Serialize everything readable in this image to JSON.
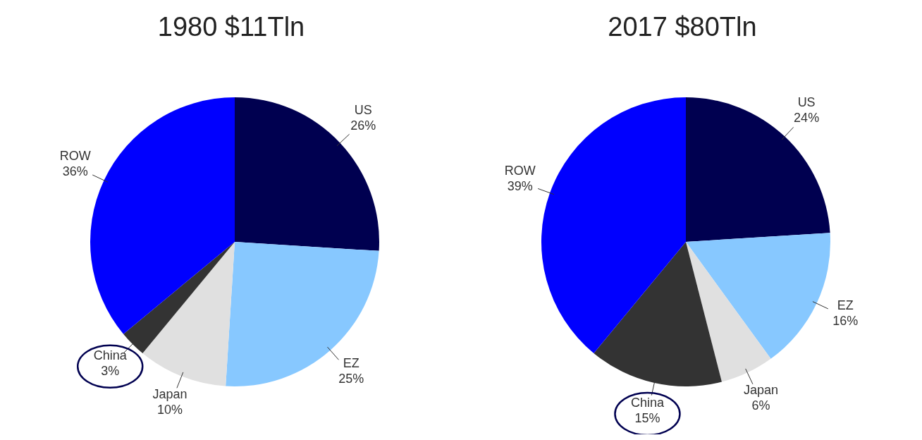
{
  "chart_data": [
    {
      "type": "pie",
      "title": "1980 $11Tln",
      "categories": [
        "US",
        "EZ",
        "Japan",
        "China",
        "ROW"
      ],
      "values": [
        26,
        25,
        10,
        3,
        36
      ],
      "value_labels": [
        "26%",
        "25%",
        "10%",
        "3%",
        "36%"
      ],
      "colors": [
        "#000050",
        "#87c8ff",
        "#e0e0e0",
        "#333333",
        "#0000ff"
      ],
      "legend": false
    },
    {
      "type": "pie",
      "title": "2017 $80Tln",
      "categories": [
        "US",
        "EZ",
        "Japan",
        "China",
        "ROW"
      ],
      "values": [
        24,
        16,
        6,
        15,
        39
      ],
      "value_labels": [
        "24%",
        "16%",
        "6%",
        "15%",
        "39%"
      ],
      "colors": [
        "#000050",
        "#87c8ff",
        "#e0e0e0",
        "#333333",
        "#0000ff"
      ],
      "legend": false
    }
  ]
}
